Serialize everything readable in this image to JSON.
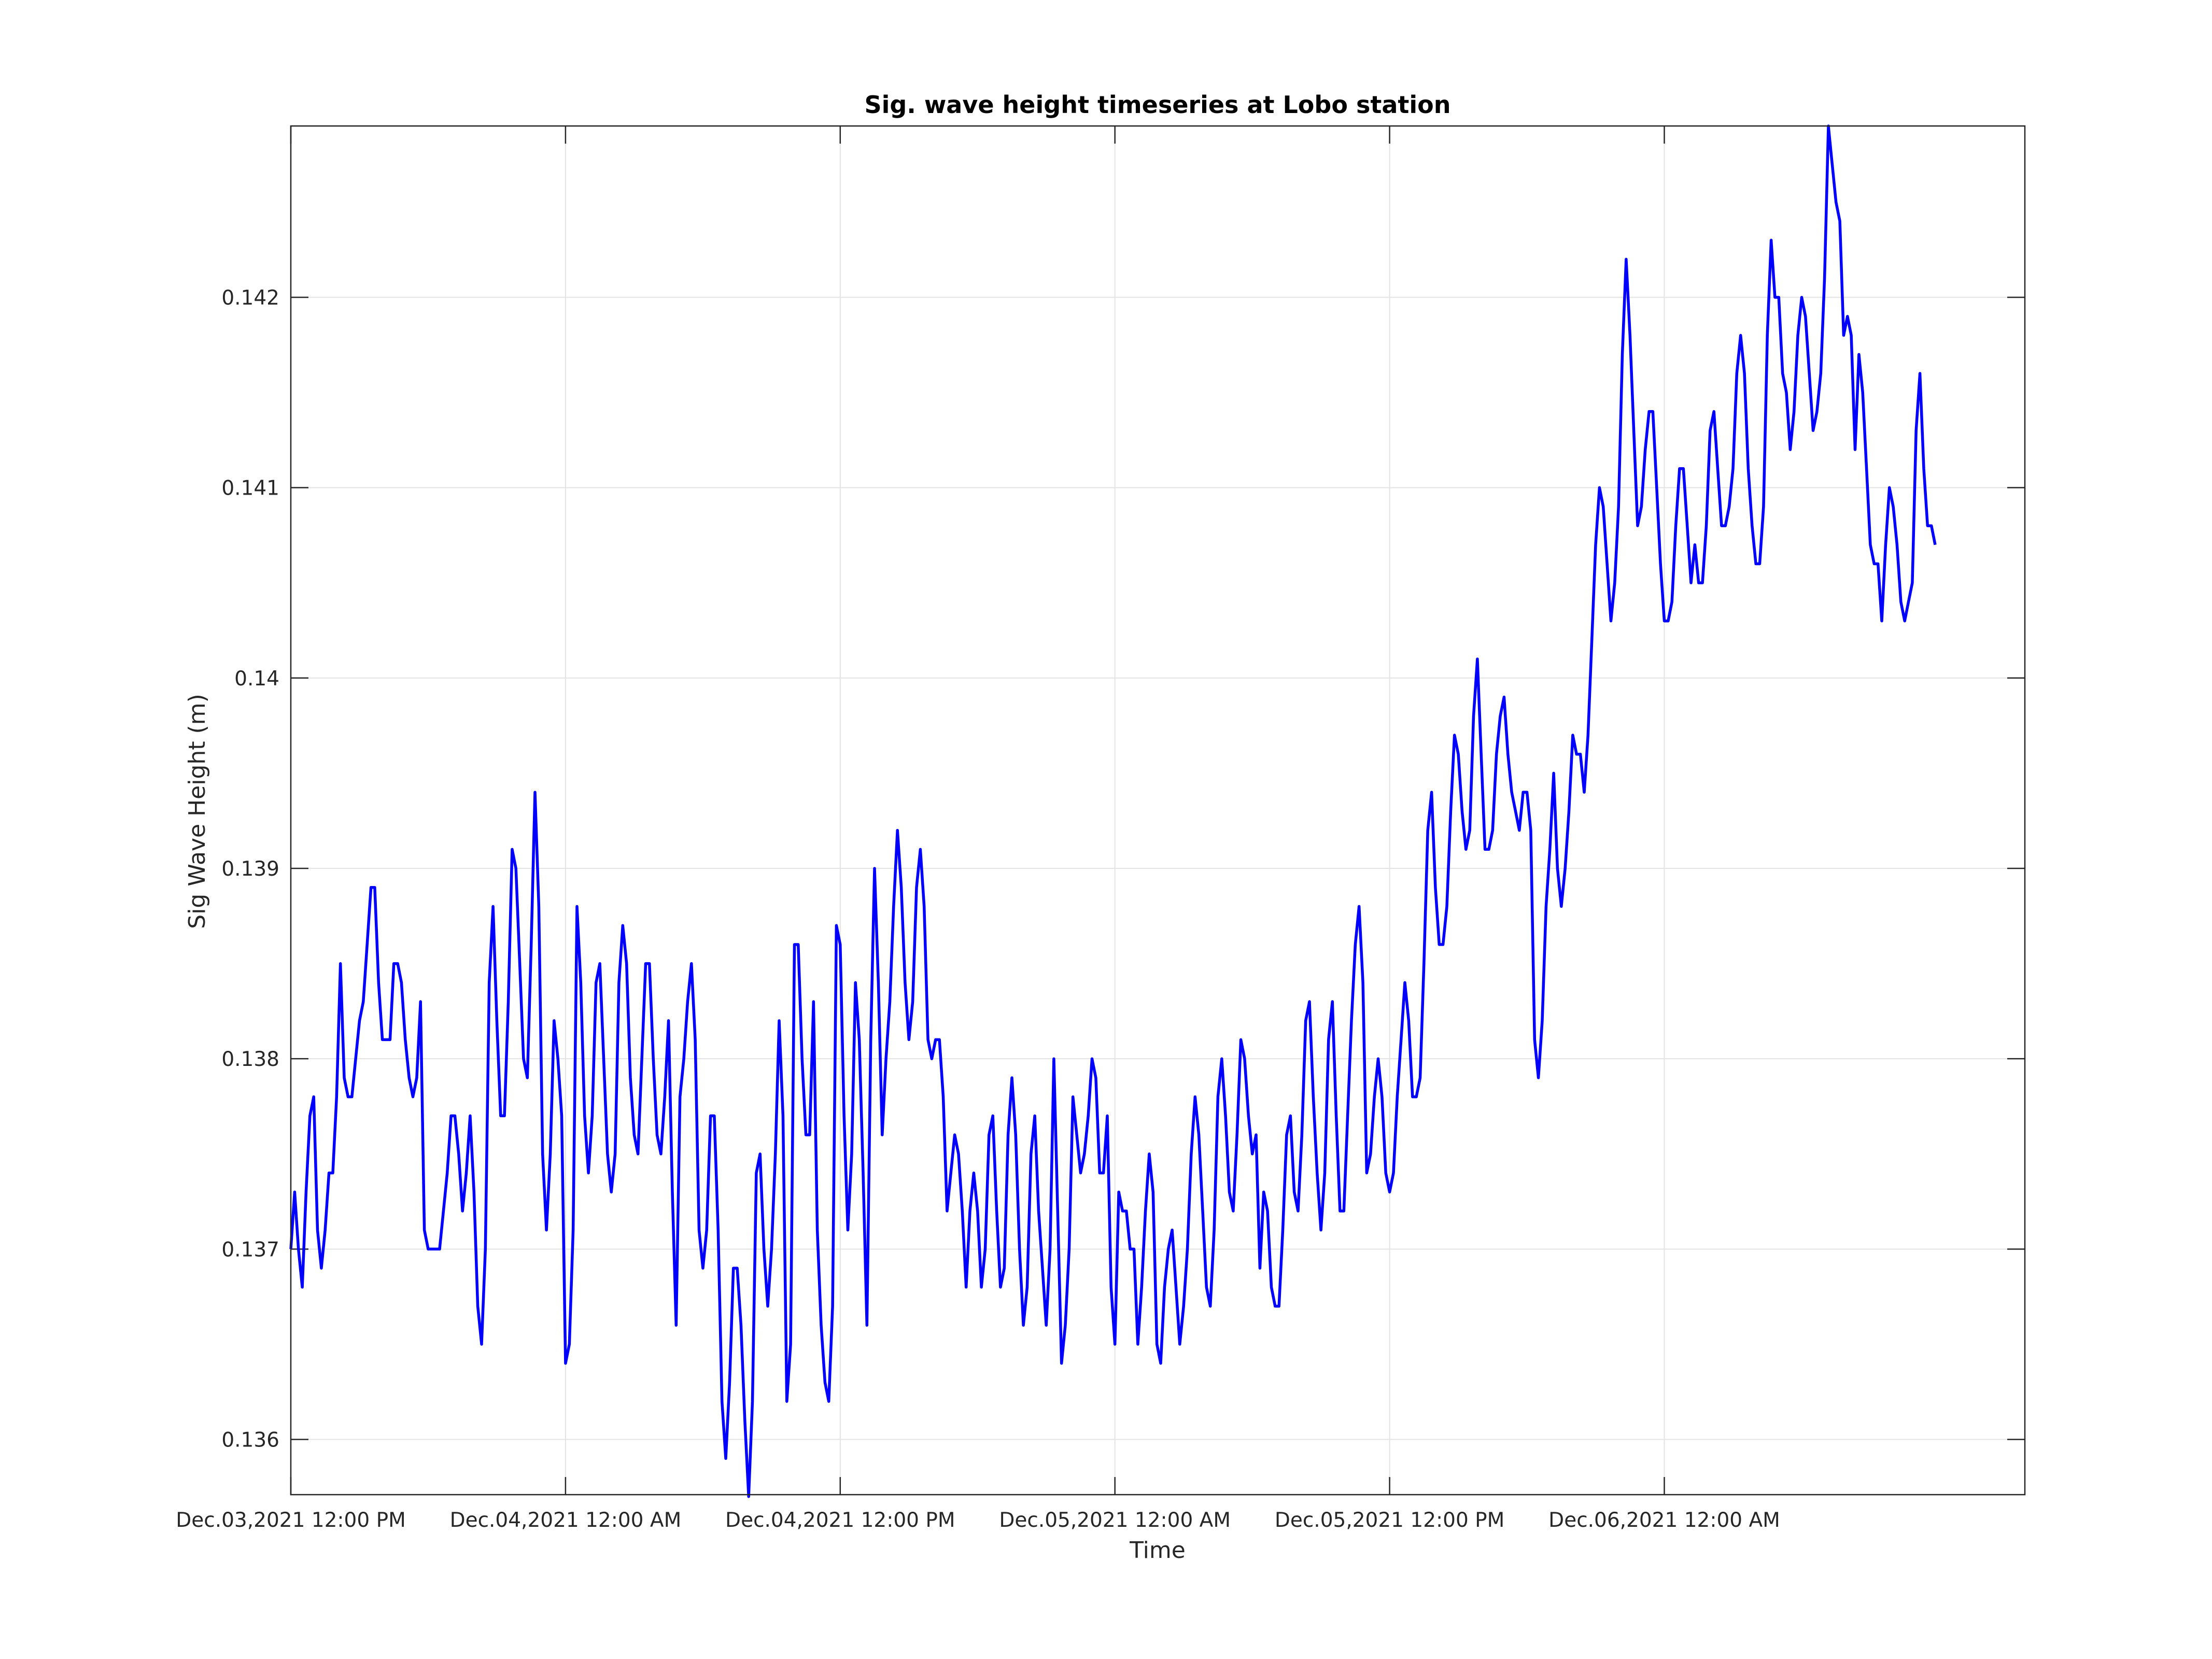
{
  "chart_data": {
    "type": "line",
    "title": "Sig. wave height timeseries at Lobo station",
    "xlabel": "Time",
    "ylabel": "Sig Wave Height (m)",
    "xlim": [
      "2021-12-03T12:00",
      "2021-12-06T15:45"
    ],
    "ylim": [
      0.13571,
      0.1429
    ],
    "x_ticks": [
      {
        "value": "2021-12-03T12:00",
        "label": "Dec.03,2021 12:00 PM"
      },
      {
        "value": "2021-12-04T00:00",
        "label": "Dec.04,2021 12:00 AM"
      },
      {
        "value": "2021-12-04T12:00",
        "label": "Dec.04,2021 12:00 PM"
      },
      {
        "value": "2021-12-05T00:00",
        "label": "Dec.05,2021 12:00 AM"
      },
      {
        "value": "2021-12-05T12:00",
        "label": "Dec.05,2021 12:00 PM"
      },
      {
        "value": "2021-12-06T00:00",
        "label": "Dec.06,2021 12:00 AM"
      }
    ],
    "y_ticks": [
      {
        "value": 0.136,
        "label": "0.136"
      },
      {
        "value": 0.137,
        "label": "0.137"
      },
      {
        "value": 0.138,
        "label": "0.138"
      },
      {
        "value": 0.139,
        "label": "0.139"
      },
      {
        "value": 0.14,
        "label": "0.140",
        "label_text": "0.14"
      },
      {
        "value": 0.141,
        "label": "0.141"
      },
      {
        "value": 0.142,
        "label": "0.142"
      }
    ],
    "grid": true,
    "legend": "none",
    "series": [
      {
        "color": "#0000ff",
        "x_start": "2021-12-03T12:00",
        "x_step_minutes": 10,
        "values": [
          0.137,
          0.1373,
          0.137,
          0.1368,
          0.1373,
          0.1377,
          0.1378,
          0.1371,
          0.1369,
          0.1371,
          0.1374,
          0.1374,
          0.1378,
          0.1385,
          0.1379,
          0.1378,
          0.1378,
          0.138,
          0.1382,
          0.1383,
          0.1386,
          0.1389,
          0.1389,
          0.1384,
          0.1381,
          0.1381,
          0.1381,
          0.1385,
          0.1385,
          0.1384,
          0.1381,
          0.1379,
          0.1378,
          0.1379,
          0.1383,
          0.1371,
          0.137,
          0.137,
          0.137,
          0.137,
          0.1372,
          0.1374,
          0.1377,
          0.1377,
          0.1375,
          0.1372,
          0.1374,
          0.1377,
          0.1373,
          0.1367,
          0.1365,
          0.137,
          0.1384,
          0.1388,
          0.1382,
          0.1377,
          0.1377,
          0.1383,
          0.1391,
          0.139,
          0.1385,
          0.138,
          0.1379,
          0.1386,
          0.1394,
          0.1388,
          0.1375,
          0.1371,
          0.1375,
          0.1382,
          0.138,
          0.1377,
          0.1364,
          0.1365,
          0.1371,
          0.1388,
          0.1384,
          0.1377,
          0.1374,
          0.1377,
          0.1384,
          0.1385,
          0.138,
          0.1375,
          0.1373,
          0.1375,
          0.1384,
          0.1387,
          0.1385,
          0.1379,
          0.1376,
          0.1375,
          0.138,
          0.1385,
          0.1385,
          0.138,
          0.1376,
          0.1375,
          0.1378,
          0.1382,
          0.1373,
          0.1366,
          0.1378,
          0.138,
          0.1383,
          0.1385,
          0.1381,
          0.1371,
          0.1369,
          0.1371,
          0.1377,
          0.1377,
          0.1371,
          0.1362,
          0.1359,
          0.1363,
          0.1369,
          0.1369,
          0.1366,
          0.1361,
          0.1357,
          0.1362,
          0.1374,
          0.1375,
          0.137,
          0.1367,
          0.137,
          0.1375,
          0.1382,
          0.1377,
          0.1362,
          0.1365,
          0.1386,
          0.1386,
          0.138,
          0.1376,
          0.1376,
          0.1383,
          0.1371,
          0.1366,
          0.1363,
          0.1362,
          0.1367,
          0.1387,
          0.1386,
          0.1377,
          0.1371,
          0.1375,
          0.1384,
          0.1381,
          0.1374,
          0.1366,
          0.1381,
          0.139,
          0.1384,
          0.1376,
          0.138,
          0.1383,
          0.1388,
          0.1392,
          0.1389,
          0.1384,
          0.1381,
          0.1383,
          0.1389,
          0.1391,
          0.1388,
          0.1381,
          0.138,
          0.1381,
          0.1381,
          0.1378,
          0.1372,
          0.1374,
          0.1376,
          0.1375,
          0.1372,
          0.1368,
          0.1372,
          0.1374,
          0.1372,
          0.1368,
          0.137,
          0.1376,
          0.1377,
          0.1372,
          0.1368,
          0.1369,
          0.1376,
          0.1379,
          0.1376,
          0.137,
          0.1366,
          0.1368,
          0.1375,
          0.1377,
          0.1372,
          0.1369,
          0.1366,
          0.137,
          0.138,
          0.1372,
          0.1364,
          0.1366,
          0.137,
          0.1378,
          0.1376,
          0.1374,
          0.1375,
          0.1377,
          0.138,
          0.1379,
          0.1374,
          0.1374,
          0.1377,
          0.1368,
          0.1365,
          0.1373,
          0.1372,
          0.1372,
          0.137,
          0.137,
          0.1365,
          0.1368,
          0.1372,
          0.1375,
          0.1373,
          0.1365,
          0.1364,
          0.1368,
          0.137,
          0.1371,
          0.1368,
          0.1365,
          0.1367,
          0.137,
          0.1375,
          0.1378,
          0.1376,
          0.1372,
          0.1368,
          0.1367,
          0.1371,
          0.1378,
          0.138,
          0.1377,
          0.1373,
          0.1372,
          0.1376,
          0.1381,
          0.138,
          0.1377,
          0.1375,
          0.1376,
          0.1369,
          0.1373,
          0.1372,
          0.1368,
          0.1367,
          0.1367,
          0.1371,
          0.1376,
          0.1377,
          0.1373,
          0.1372,
          0.1376,
          0.1382,
          0.1383,
          0.1378,
          0.1374,
          0.1371,
          0.1374,
          0.1381,
          0.1383,
          0.1377,
          0.1372,
          0.1372,
          0.1377,
          0.1382,
          0.1386,
          0.1388,
          0.1384,
          0.1374,
          0.1375,
          0.1378,
          0.138,
          0.1378,
          0.1374,
          0.1373,
          0.1374,
          0.1378,
          0.1381,
          0.1384,
          0.1382,
          0.1378,
          0.1378,
          0.1379,
          0.1385,
          0.1392,
          0.1394,
          0.1389,
          0.1386,
          0.1386,
          0.1388,
          0.1393,
          0.1397,
          0.1396,
          0.1393,
          0.1391,
          0.1392,
          0.1398,
          0.1401,
          0.1396,
          0.1391,
          0.1391,
          0.1392,
          0.1396,
          0.1398,
          0.1399,
          0.1396,
          0.1394,
          0.1393,
          0.1392,
          0.1394,
          0.1394,
          0.1392,
          0.1381,
          0.1379,
          0.1382,
          0.1388,
          0.1391,
          0.1395,
          0.139,
          0.1388,
          0.139,
          0.1393,
          0.1397,
          0.1396,
          0.1396,
          0.1394,
          0.1397,
          0.1402,
          0.1407,
          0.141,
          0.1409,
          0.1406,
          0.1403,
          0.1405,
          0.1409,
          0.1417,
          0.1422,
          0.1418,
          0.1413,
          0.1408,
          0.1409,
          0.1412,
          0.1414,
          0.1414,
          0.141,
          0.1406,
          0.1403,
          0.1403,
          0.1404,
          0.1408,
          0.1411,
          0.1411,
          0.1408,
          0.1405,
          0.1407,
          0.1405,
          0.1405,
          0.1408,
          0.1413,
          0.1414,
          0.1411,
          0.1408,
          0.1408,
          0.1409,
          0.1411,
          0.1416,
          0.1418,
          0.1416,
          0.1411,
          0.1408,
          0.1406,
          0.1406,
          0.1409,
          0.1418,
          0.1423,
          0.142,
          0.142,
          0.1416,
          0.1415,
          0.1412,
          0.1414,
          0.1418,
          0.142,
          0.1419,
          0.1416,
          0.1413,
          0.1414,
          0.1416,
          0.1421,
          0.1429,
          0.1427,
          0.1425,
          0.1424,
          0.1418,
          0.1419,
          0.1418,
          0.1412,
          0.1417,
          0.1415,
          0.1411,
          0.1407,
          0.1406,
          0.1406,
          0.1403,
          0.1407,
          0.141,
          0.1409,
          0.1407,
          0.1404,
          0.1403,
          0.1404,
          0.1405,
          0.1413,
          0.1416,
          0.1411,
          0.1408,
          0.1408,
          0.1407
        ]
      }
    ]
  }
}
